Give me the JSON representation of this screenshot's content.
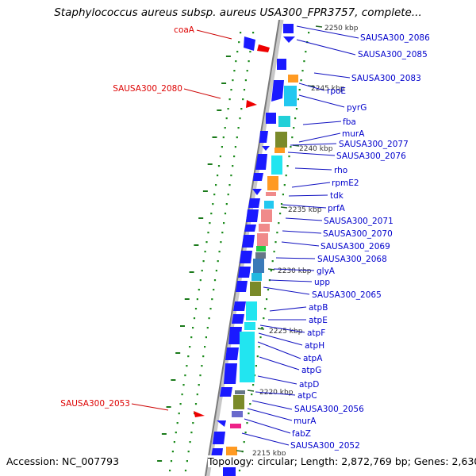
{
  "title": "Staphylococcus aureus subsp. aureus USA300_FPR3757, complete...",
  "accession": "Accession: NC_007793",
  "summary": "Topology: circular; Length: 2,872,769 bp; Genes: 2,630",
  "scale_labels": [
    "2250 kbp",
    "2245 kbp",
    "2240 kbp",
    "2235 kbp",
    "2230 kbp",
    "2225 kbp",
    "2220 kbp",
    "2215 kbp"
  ],
  "genes_right": [
    "SAUSA300_2086",
    "SAUSA300_2085",
    "SAUSA300_2083",
    "rpoE",
    "pyrG",
    "fba",
    "murA",
    "SAUSA300_2077",
    "SAUSA300_2076",
    "rho",
    "rpmE2",
    "tdk",
    "prfA",
    "SAUSA300_2071",
    "SAUSA300_2070",
    "SAUSA300_2069",
    "SAUSA300_2068",
    "glyA",
    "upp",
    "SAUSA300_2065",
    "atpB",
    "atpE",
    "atpF",
    "atpH",
    "atpA",
    "atpG",
    "atpD",
    "atpC",
    "SAUSA300_2056",
    "murA",
    "fabZ",
    "SAUSA300_2052"
  ],
  "genes_left": [
    "coaA",
    "SAUSA300_2080",
    "SAUSA300_2053"
  ],
  "colors": {
    "cds_blue": "#1a1aff",
    "cyan": "#22e5f0",
    "orange": "#ff9a22",
    "olive": "#7a8a2a",
    "salmon": "#f08a8a",
    "red_label": "#dd0000",
    "blue_label": "#0000cc",
    "dot_green": "#1a7a1a"
  }
}
